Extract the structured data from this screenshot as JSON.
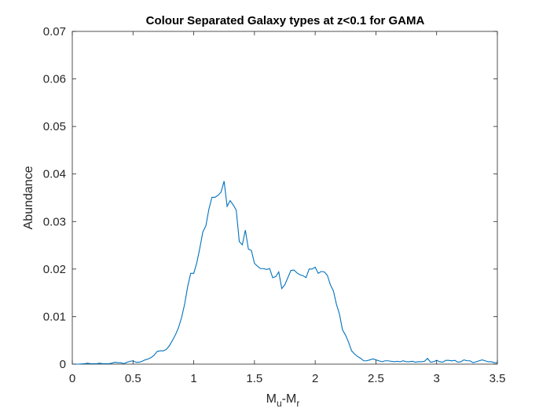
{
  "chart_data": {
    "type": "line",
    "title": "Colour Separated Galaxy types at z<0.1 for GAMA",
    "xlabel_main": "M",
    "xlabel_sub1": "u",
    "xlabel_mid": "-M",
    "xlabel_sub2": "r",
    "ylabel": "Abundance",
    "xlim": [
      0,
      3.5
    ],
    "ylim": [
      0,
      0.07
    ],
    "x_ticks": [
      0,
      0.5,
      1,
      1.5,
      2,
      2.5,
      3,
      3.5
    ],
    "x_tick_labels": [
      "0",
      "0.5",
      "1",
      "1.5",
      "2",
      "2.5",
      "3",
      "3.5"
    ],
    "y_ticks": [
      0,
      0.01,
      0.02,
      0.03,
      0.04,
      0.05,
      0.06,
      0.07
    ],
    "y_tick_labels": [
      "0",
      "0.01",
      "0.02",
      "0.03",
      "0.04",
      "0.05",
      "0.06",
      "0.07"
    ],
    "grid": false,
    "box": true,
    "series_color": "#0072BD",
    "series": [
      {
        "x": [
          0.0,
          0.05,
          0.1,
          0.125,
          0.15,
          0.2,
          0.225,
          0.25,
          0.3,
          0.325,
          0.35,
          0.375,
          0.4,
          0.425,
          0.45,
          0.475,
          0.5,
          0.525,
          0.55,
          0.575,
          0.6,
          0.625,
          0.65,
          0.675,
          0.7,
          0.725,
          0.75,
          0.775,
          0.8,
          0.825,
          0.85,
          0.875,
          0.9,
          0.925,
          0.95,
          0.975,
          1.0,
          1.025,
          1.05,
          1.075,
          1.1,
          1.125,
          1.15,
          1.175,
          1.2,
          1.225,
          1.25,
          1.275,
          1.3,
          1.325,
          1.35,
          1.375,
          1.4,
          1.425,
          1.45,
          1.475,
          1.5,
          1.525,
          1.55,
          1.575,
          1.6,
          1.625,
          1.65,
          1.675,
          1.7,
          1.725,
          1.75,
          1.775,
          1.8,
          1.825,
          1.85,
          1.875,
          1.9,
          1.925,
          1.95,
          1.975,
          2.0,
          2.025,
          2.05,
          2.075,
          2.1,
          2.125,
          2.15,
          2.175,
          2.2,
          2.225,
          2.25,
          2.275,
          2.3,
          2.325,
          2.35,
          2.375,
          2.4,
          2.425,
          2.45,
          2.475,
          2.5,
          2.525,
          2.55,
          2.575,
          2.6,
          2.625,
          2.65,
          2.675,
          2.7,
          2.725,
          2.75,
          2.775,
          2.8,
          2.825,
          2.85,
          2.875,
          2.9,
          2.925,
          2.95,
          2.975,
          3.0,
          3.025,
          3.05,
          3.075,
          3.1,
          3.125,
          3.15,
          3.175,
          3.2,
          3.225,
          3.25,
          3.275,
          3.3,
          3.325,
          3.35,
          3.375,
          3.4,
          3.425,
          3.45,
          3.475,
          3.5
        ],
        "y": [
          0.0,
          0.0,
          0.0001,
          0.0002,
          0.0001,
          0.0001,
          0.0002,
          0.0001,
          0.0001,
          0.0002,
          0.0004,
          0.0003,
          0.0003,
          0.0001,
          0.0004,
          0.0006,
          0.0007,
          0.0004,
          0.0004,
          0.0006,
          0.0009,
          0.0011,
          0.0014,
          0.0019,
          0.0027,
          0.0028,
          0.0028,
          0.0031,
          0.0039,
          0.005,
          0.0062,
          0.0077,
          0.0098,
          0.0126,
          0.0163,
          0.0191,
          0.0191,
          0.0213,
          0.0244,
          0.0278,
          0.0291,
          0.0326,
          0.0351,
          0.0351,
          0.0355,
          0.0362,
          0.0385,
          0.0332,
          0.0344,
          0.0335,
          0.0324,
          0.0258,
          0.0251,
          0.0282,
          0.0242,
          0.0239,
          0.0212,
          0.0206,
          0.0201,
          0.0201,
          0.0199,
          0.0201,
          0.0182,
          0.0184,
          0.0194,
          0.0159,
          0.0167,
          0.0182,
          0.0197,
          0.0198,
          0.0192,
          0.0188,
          0.0186,
          0.0182,
          0.02,
          0.02,
          0.0204,
          0.0191,
          0.0195,
          0.0194,
          0.0187,
          0.0167,
          0.0154,
          0.0126,
          0.0105,
          0.0072,
          0.0061,
          0.0046,
          0.0028,
          0.0021,
          0.0016,
          0.0012,
          0.0007,
          0.0007,
          0.0009,
          0.0011,
          0.0009,
          0.0007,
          0.0005,
          0.0007,
          0.0007,
          0.0006,
          0.0005,
          0.0006,
          0.0005,
          0.0007,
          0.0005,
          0.0005,
          0.0006,
          0.0004,
          0.0005,
          0.0005,
          0.0006,
          0.0012,
          0.0004,
          0.0005,
          0.0008,
          0.0005,
          0.0004,
          0.0008,
          0.0008,
          0.0007,
          0.0008,
          0.0004,
          0.0005,
          0.0009,
          0.0007,
          0.0007,
          0.0003,
          0.0005,
          0.0007,
          0.0009,
          0.0007,
          0.0005,
          0.0005,
          0.0003,
          0.0003
        ]
      }
    ]
  }
}
